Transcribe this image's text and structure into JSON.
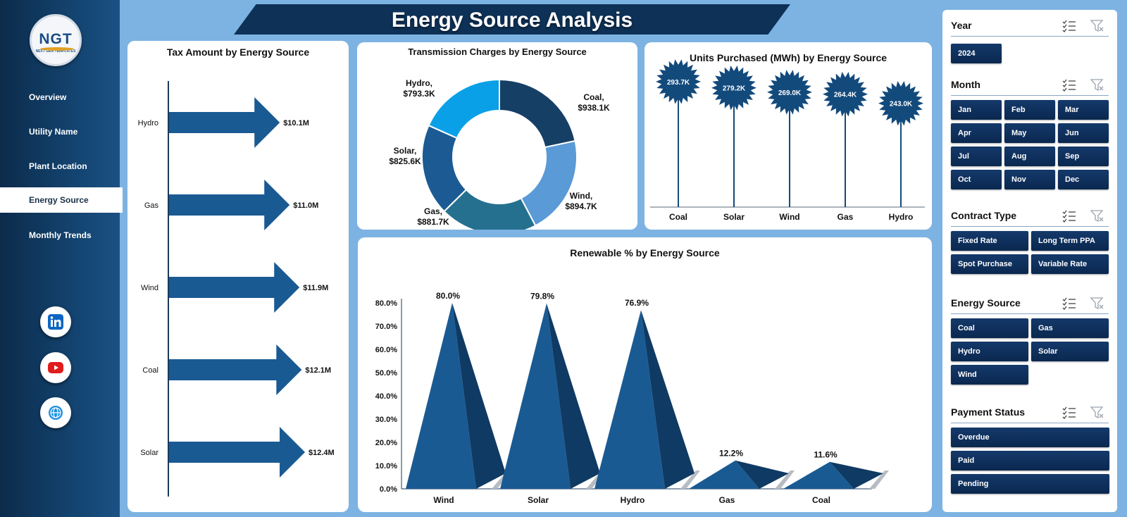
{
  "logo": {
    "mark": "NGT",
    "sub": "NEXT GEN TEMPLATES"
  },
  "nav": [
    {
      "label": "Overview",
      "active": false
    },
    {
      "label": "Utility Name",
      "active": false
    },
    {
      "label": "Plant Location",
      "active": false
    },
    {
      "label": "Energy Source",
      "active": true
    },
    {
      "label": "Monthly Trends",
      "active": false
    }
  ],
  "social": [
    {
      "icon": "linkedin-icon",
      "color": "#0a66c2"
    },
    {
      "icon": "youtube-icon",
      "color": "#e01b1b"
    },
    {
      "icon": "web-globe-icon",
      "color": "#1a6fc0"
    }
  ],
  "title": "Energy Source Analysis",
  "charts": {
    "tax": {
      "title": "Tax Amount by Energy Source",
      "chart_data": {
        "type": "bar",
        "orientation": "horizontal",
        "categories": [
          "Hydro",
          "Gas",
          "Wind",
          "Coal",
          "Solar"
        ],
        "values": [
          10.1,
          11.0,
          11.9,
          12.1,
          12.4
        ],
        "data_labels": [
          "$10.1M",
          "$11.0M",
          "$11.9M",
          "$12.1M",
          "$12.4M"
        ],
        "unit": "$M",
        "color": "#1a5a93"
      }
    },
    "transmission": {
      "title": "Transmission Charges by Energy Source",
      "chart_data": {
        "type": "pie",
        "donut": true,
        "categories": [
          "Coal",
          "Wind",
          "Gas",
          "Solar",
          "Hydro"
        ],
        "values": [
          938.1,
          894.7,
          881.7,
          825.6,
          793.3
        ],
        "label_names": [
          "Coal,",
          "Wind,",
          "Gas,",
          "Solar,",
          "Hydro,"
        ],
        "label_values": [
          "$938.1K",
          "$894.7K",
          "$881.7K",
          "$825.6K",
          "$793.3K"
        ],
        "colors": [
          "#163f66",
          "#5a9ad6",
          "#26708f",
          "#1c5a93",
          "#0aa0e8"
        ]
      }
    },
    "units": {
      "title": "Units Purchased (MWh) by Energy Source",
      "chart_data": {
        "type": "scatter",
        "style": "lollipop",
        "categories": [
          "Coal",
          "Solar",
          "Wind",
          "Gas",
          "Hydro"
        ],
        "values": [
          293.7,
          279.2,
          269.0,
          264.4,
          243.0
        ],
        "data_labels": [
          "293.7K",
          "279.2K",
          "269.0K",
          "264.4K",
          "243.0K"
        ],
        "ylim": [
          0,
          320
        ],
        "color": "#134a7c"
      }
    },
    "renewable": {
      "title": "Renewable % by Energy Source",
      "chart_data": {
        "type": "bar",
        "style": "pyramid",
        "categories": [
          "Wind",
          "Solar",
          "Hydro",
          "Gas",
          "Coal"
        ],
        "values": [
          80.0,
          79.8,
          76.9,
          12.2,
          11.6
        ],
        "data_labels": [
          "80.0%",
          "79.8%",
          "76.9%",
          "12.2%",
          "11.6%"
        ],
        "ylim": [
          0,
          80
        ],
        "yticks": [
          "0.0%",
          "10.0%",
          "20.0%",
          "30.0%",
          "40.0%",
          "50.0%",
          "60.0%",
          "70.0%",
          "80.0%"
        ],
        "color": "#1a5a93"
      }
    }
  },
  "slicers": [
    {
      "label": "Year",
      "items": [
        "2024"
      ]
    },
    {
      "label": "Month",
      "items": [
        "Jan",
        "Feb",
        "Mar",
        "Apr",
        "May",
        "Jun",
        "Jul",
        "Aug",
        "Sep",
        "Oct",
        "Nov",
        "Dec"
      ]
    },
    {
      "label": "Contract Type",
      "items": [
        "Fixed Rate",
        "Long Term PPA",
        "Spot Purchase",
        "Variable Rate"
      ]
    },
    {
      "label": "Energy Source",
      "items": [
        "Coal",
        "Gas",
        "Hydro",
        "Solar",
        "Wind"
      ]
    },
    {
      "label": "Payment Status",
      "items": [
        "Overdue",
        "Paid",
        "Pending"
      ]
    }
  ]
}
